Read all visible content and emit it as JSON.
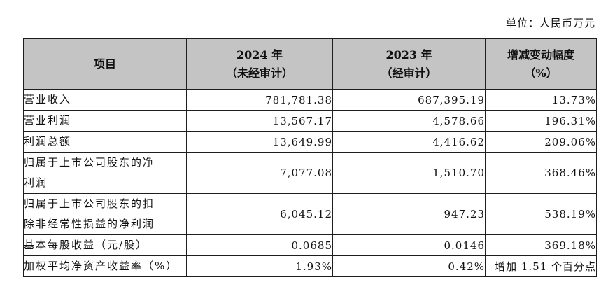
{
  "unit_label": "单位：人民币万元",
  "headers": [
    {
      "line1": "项目",
      "line2": ""
    },
    {
      "line1": "2024 年",
      "line2": "（未经审计）"
    },
    {
      "line1": "2023 年",
      "line2": "（经审计）"
    },
    {
      "line1": "增减变动幅度",
      "line2": "（%）"
    }
  ],
  "rows": [
    {
      "name_line1": "营业收入",
      "name_line2": "",
      "y2024": "781,781.38",
      "y2023": "687,395.19",
      "change": "13.73%"
    },
    {
      "name_line1": "营业利润",
      "name_line2": "",
      "y2024": "13,567.17",
      "y2023": "4,578.66",
      "change": "196.31%"
    },
    {
      "name_line1": "利润总额",
      "name_line2": "",
      "y2024": "13,649.99",
      "y2023": "4,416.62",
      "change": "209.06%"
    },
    {
      "name_line1": "归属于上市公司股东的净",
      "name_line2": "利润",
      "y2024": "7,077.08",
      "y2023": "1,510.70",
      "change": "368.46%"
    },
    {
      "name_line1": "归属于上市公司股东的扣",
      "name_line2": "除非经常性损益的净利润",
      "y2024": "6,045.12",
      "y2023": "947.23",
      "change": "538.19%"
    },
    {
      "name_line1": "基本每股收益（元/股）",
      "name_line2": "",
      "y2024": "0.0685",
      "y2023": "0.0146",
      "change": "369.18%"
    },
    {
      "name_line1": "加权平均净资产收益率（%）",
      "name_line2": "",
      "y2024": "1.93%",
      "y2023": "0.42%",
      "change": "增加 1.51 个百分点"
    }
  ]
}
